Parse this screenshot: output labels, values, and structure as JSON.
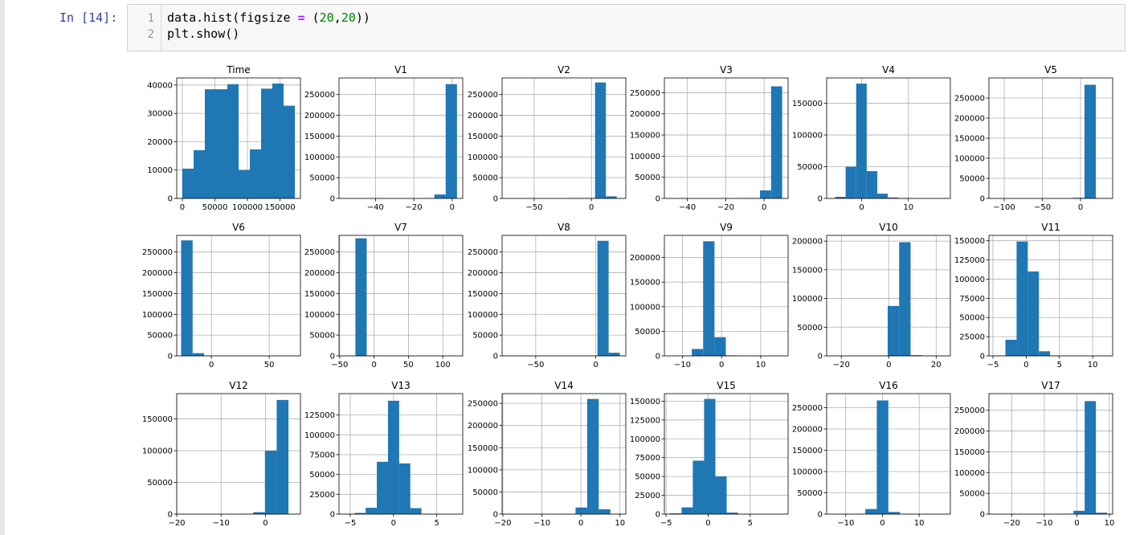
{
  "cell": {
    "prompt": "In [14]:",
    "line_numbers": [
      "1",
      "2"
    ],
    "line1": {
      "a": "data.hist(figsize ",
      "op": "=",
      "b": " (",
      "n1": "20",
      "c": ",",
      "n2": "20",
      "d": "))"
    },
    "line2": "plt.show()"
  },
  "colors": {
    "bar": "#1f77b4",
    "grid": "#b0b0b0",
    "prompt": "#303f9f",
    "cell_bg": "#f7f7f7",
    "cell_border": "#cfcfcf"
  },
  "chart_data": [
    {
      "type": "bar",
      "title": "Time",
      "xlim": [
        -8600,
        181400
      ],
      "ylim": [
        0,
        42500
      ],
      "xticks": [
        {
          "v": 0,
          "l": "0"
        },
        {
          "v": 50000,
          "l": "50000"
        },
        {
          "v": 100000,
          "l": "100000"
        },
        {
          "v": 150000,
          "l": "150000"
        }
      ],
      "yticks": [
        {
          "v": 0,
          "l": "0"
        },
        {
          "v": 10000,
          "l": "10000"
        },
        {
          "v": 20000,
          "l": "20000"
        },
        {
          "v": 30000,
          "l": "30000"
        },
        {
          "v": 40000,
          "l": "40000"
        }
      ],
      "bin_start": 0,
      "bin_end": 172800,
      "values": [
        10500,
        17000,
        38500,
        38500,
        40300,
        10000,
        17300,
        38700,
        40500,
        32700
      ]
    },
    {
      "type": "bar",
      "title": "V1",
      "xlim": [
        -59,
        5.5
      ],
      "ylim": [
        0,
        290000
      ],
      "xticks": [
        {
          "v": -40,
          "l": "−40"
        },
        {
          "v": -20,
          "l": "−20"
        },
        {
          "v": 0,
          "l": "0"
        }
      ],
      "yticks": [
        {
          "v": 0,
          "l": "0"
        },
        {
          "v": 50000,
          "l": "50000"
        },
        {
          "v": 100000,
          "l": "100000"
        },
        {
          "v": 150000,
          "l": "150000"
        },
        {
          "v": 200000,
          "l": "200000"
        },
        {
          "v": 250000,
          "l": "250000"
        }
      ],
      "bin_start": -56.4,
      "bin_end": 2.5,
      "values": [
        0,
        0,
        0,
        0,
        0,
        0,
        0,
        500,
        9500,
        275000
      ]
    },
    {
      "type": "bar",
      "title": "V2",
      "xlim": [
        -78,
        30
      ],
      "ylim": [
        0,
        290000
      ],
      "xticks": [
        {
          "v": -50,
          "l": "−50"
        },
        {
          "v": 0,
          "l": "0"
        }
      ],
      "yticks": [
        {
          "v": 0,
          "l": "0"
        },
        {
          "v": 50000,
          "l": "50000"
        },
        {
          "v": 100000,
          "l": "100000"
        },
        {
          "v": 150000,
          "l": "150000"
        },
        {
          "v": 200000,
          "l": "200000"
        },
        {
          "v": 250000,
          "l": "250000"
        }
      ],
      "bin_start": -72.7,
      "bin_end": 22.1,
      "values": [
        0,
        0,
        0,
        0,
        0,
        0,
        700,
        800,
        279000,
        5000
      ]
    },
    {
      "type": "bar",
      "title": "V3",
      "xlim": [
        -52,
        12.5
      ],
      "ylim": [
        0,
        285000
      ],
      "xticks": [
        {
          "v": -40,
          "l": "−40"
        },
        {
          "v": -20,
          "l": "−20"
        },
        {
          "v": 0,
          "l": "0"
        }
      ],
      "yticks": [
        {
          "v": 0,
          "l": "0"
        },
        {
          "v": 50000,
          "l": "50000"
        },
        {
          "v": 100000,
          "l": "100000"
        },
        {
          "v": 150000,
          "l": "150000"
        },
        {
          "v": 200000,
          "l": "200000"
        },
        {
          "v": 250000,
          "l": "250000"
        }
      ],
      "bin_start": -48.3,
      "bin_end": 9.4,
      "values": [
        0,
        0,
        0,
        0,
        0,
        0,
        500,
        1000,
        19000,
        265000
      ]
    },
    {
      "type": "bar",
      "title": "V4",
      "xlim": [
        -7.5,
        19
      ],
      "ylim": [
        0,
        190000
      ],
      "xticks": [
        {
          "v": 0,
          "l": "0"
        },
        {
          "v": 10,
          "l": "10"
        }
      ],
      "yticks": [
        {
          "v": 0,
          "l": "0"
        },
        {
          "v": 50000,
          "l": "50000"
        },
        {
          "v": 100000,
          "l": "100000"
        },
        {
          "v": 150000,
          "l": "150000"
        }
      ],
      "bin_start": -5.7,
      "bin_end": 16.9,
      "values": [
        2500,
        50000,
        181000,
        43000,
        7500,
        1500,
        500,
        0,
        0,
        0
      ]
    },
    {
      "type": "bar",
      "title": "V5",
      "xlim": [
        -120,
        42
      ],
      "ylim": [
        0,
        300000
      ],
      "xticks": [
        {
          "v": -100,
          "l": "−100"
        },
        {
          "v": -50,
          "l": "−50"
        },
        {
          "v": 0,
          "l": "0"
        }
      ],
      "yticks": [
        {
          "v": 0,
          "l": "0"
        },
        {
          "v": 50000,
          "l": "50000"
        },
        {
          "v": 100000,
          "l": "100000"
        },
        {
          "v": 150000,
          "l": "150000"
        },
        {
          "v": 200000,
          "l": "200000"
        },
        {
          "v": 250000,
          "l": "250000"
        }
      ],
      "bin_start": -113.7,
      "bin_end": 34.8,
      "values": [
        0,
        0,
        0,
        0,
        0,
        0,
        0,
        1500,
        283000,
        500
      ]
    },
    {
      "type": "bar",
      "title": "V6",
      "xlim": [
        -30,
        77
      ],
      "ylim": [
        0,
        290000
      ],
      "xticks": [
        {
          "v": 0,
          "l": "0"
        },
        {
          "v": 50,
          "l": "50"
        }
      ],
      "yticks": [
        {
          "v": 0,
          "l": "0"
        },
        {
          "v": 50000,
          "l": "50000"
        },
        {
          "v": 100000,
          "l": "100000"
        },
        {
          "v": 150000,
          "l": "150000"
        },
        {
          "v": 200000,
          "l": "200000"
        },
        {
          "v": 250000,
          "l": "250000"
        }
      ],
      "bin_start": -26.2,
      "bin_end": 73.3,
      "values": [
        278000,
        6500,
        300,
        100,
        0,
        0,
        0,
        0,
        0,
        0
      ]
    },
    {
      "type": "bar",
      "title": "V7",
      "xlim": [
        -51,
        129
      ],
      "ylim": [
        0,
        290000
      ],
      "xticks": [
        {
          "v": -50,
          "l": "−50"
        },
        {
          "v": 0,
          "l": "0"
        },
        {
          "v": 50,
          "l": "50"
        },
        {
          "v": 100,
          "l": "100"
        }
      ],
      "yticks": [
        {
          "v": 0,
          "l": "0"
        },
        {
          "v": 50000,
          "l": "50000"
        },
        {
          "v": 100000,
          "l": "100000"
        },
        {
          "v": 150000,
          "l": "150000"
        },
        {
          "v": 200000,
          "l": "200000"
        },
        {
          "v": 250000,
          "l": "250000"
        }
      ],
      "bin_start": -43.6,
      "bin_end": 120.6,
      "values": [
        0,
        283000,
        1000,
        0,
        0,
        0,
        0,
        0,
        0,
        0
      ]
    },
    {
      "type": "bar",
      "title": "V8",
      "xlim": [
        -78,
        25
      ],
      "ylim": [
        0,
        290000
      ],
      "xticks": [
        {
          "v": -50,
          "l": "−50"
        },
        {
          "v": 0,
          "l": "0"
        }
      ],
      "yticks": [
        {
          "v": 0,
          "l": "0"
        },
        {
          "v": 50000,
          "l": "50000"
        },
        {
          "v": 100000,
          "l": "100000"
        },
        {
          "v": 150000,
          "l": "150000"
        },
        {
          "v": 200000,
          "l": "200000"
        },
        {
          "v": 250000,
          "l": "250000"
        }
      ],
      "bin_start": -73.2,
      "bin_end": 20.0,
      "values": [
        0,
        0,
        0,
        0,
        0,
        0,
        0,
        300,
        277000,
        7500
      ]
    },
    {
      "type": "bar",
      "title": "V9",
      "xlim": [
        -14.6,
        17.0
      ],
      "ylim": [
        0,
        245000
      ],
      "xticks": [
        {
          "v": -10,
          "l": "−10"
        },
        {
          "v": 0,
          "l": "0"
        },
        {
          "v": 10,
          "l": "10"
        }
      ],
      "yticks": [
        {
          "v": 0,
          "l": "0"
        },
        {
          "v": 50000,
          "l": "50000"
        },
        {
          "v": 100000,
          "l": "100000"
        },
        {
          "v": 150000,
          "l": "150000"
        },
        {
          "v": 200000,
          "l": "200000"
        }
      ],
      "bin_start": -13.4,
      "bin_end": 15.6,
      "values": [
        100,
        500,
        14000,
        233000,
        38000,
        1000,
        100,
        0,
        0,
        0
      ]
    },
    {
      "type": "bar",
      "title": "V10",
      "xlim": [
        -26.2,
        26.0
      ],
      "ylim": [
        0,
        210000
      ],
      "xticks": [
        {
          "v": -20,
          "l": "−20"
        },
        {
          "v": 0,
          "l": "0"
        },
        {
          "v": 20,
          "l": "20"
        }
      ],
      "yticks": [
        {
          "v": 0,
          "l": "0"
        },
        {
          "v": 50000,
          "l": "50000"
        },
        {
          "v": 100000,
          "l": "100000"
        },
        {
          "v": 150000,
          "l": "150000"
        },
        {
          "v": 200000,
          "l": "200000"
        }
      ],
      "bin_start": -24.6,
      "bin_end": 23.7,
      "values": [
        0,
        0,
        0,
        0,
        200,
        87000,
        198000,
        1200,
        0,
        0
      ]
    },
    {
      "type": "bar",
      "title": "V11",
      "xlim": [
        -5.6,
        13.0
      ],
      "ylim": [
        0,
        157000
      ],
      "xticks": [
        {
          "v": -5,
          "l": "−5"
        },
        {
          "v": 0,
          "l": "0"
        },
        {
          "v": 5,
          "l": "5"
        },
        {
          "v": 10,
          "l": "10"
        }
      ],
      "yticks": [
        {
          "v": 0,
          "l": "0"
        },
        {
          "v": 25000,
          "l": "25000"
        },
        {
          "v": 50000,
          "l": "50000"
        },
        {
          "v": 75000,
          "l": "75000"
        },
        {
          "v": 100000,
          "l": "100000"
        },
        {
          "v": 125000,
          "l": "125000"
        },
        {
          "v": 150000,
          "l": "150000"
        }
      ],
      "bin_start": -4.8,
      "bin_end": 12.0,
      "values": [
        500,
        21000,
        149000,
        110000,
        6000,
        200,
        50,
        0,
        0,
        0
      ]
    },
    {
      "type": "bar",
      "title": "V12",
      "xlim": [
        -20,
        7.9
      ],
      "ylim": [
        0,
        190000
      ],
      "xticks": [
        {
          "v": -20,
          "l": "−20"
        },
        {
          "v": -10,
          "l": "−10"
        },
        {
          "v": 0,
          "l": "0"
        }
      ],
      "yticks": [
        {
          "v": 0,
          "l": "0"
        },
        {
          "v": 50000,
          "l": "50000"
        },
        {
          "v": 100000,
          "l": "100000"
        },
        {
          "v": 150000,
          "l": "150000"
        }
      ],
      "bin_start": -18.7,
      "bin_end": 7.85,
      "values": [
        0,
        0,
        0,
        0,
        0,
        500,
        3000,
        100000,
        180000,
        0
      ]
    },
    {
      "type": "bar",
      "title": "V13",
      "xlim": [
        -6.3,
        8.0
      ],
      "ylim": [
        0,
        152000
      ],
      "xticks": [
        {
          "v": -5,
          "l": "−5"
        },
        {
          "v": 0,
          "l": "0"
        },
        {
          "v": 5,
          "l": "5"
        }
      ],
      "yticks": [
        {
          "v": 0,
          "l": "0"
        },
        {
          "v": 25000,
          "l": "25000"
        },
        {
          "v": 50000,
          "l": "50000"
        },
        {
          "v": 75000,
          "l": "75000"
        },
        {
          "v": 100000,
          "l": "100000"
        },
        {
          "v": 125000,
          "l": "125000"
        }
      ],
      "bin_start": -5.8,
      "bin_end": 7.1,
      "values": [
        100,
        1500,
        8000,
        66000,
        143000,
        64000,
        7500,
        100,
        50,
        0
      ]
    },
    {
      "type": "bar",
      "title": "V14",
      "xlim": [
        -20.2,
        11.5
      ],
      "ylim": [
        0,
        272000
      ],
      "xticks": [
        {
          "v": -20,
          "l": "−20"
        },
        {
          "v": -10,
          "l": "−10"
        },
        {
          "v": 0,
          "l": "0"
        },
        {
          "v": 10,
          "l": "10"
        }
      ],
      "yticks": [
        {
          "v": 0,
          "l": "0"
        },
        {
          "v": 50000,
          "l": "50000"
        },
        {
          "v": 100000,
          "l": "100000"
        },
        {
          "v": 150000,
          "l": "150000"
        },
        {
          "v": 200000,
          "l": "200000"
        },
        {
          "v": 250000,
          "l": "250000"
        }
      ],
      "bin_start": -19.2,
      "bin_end": 10.5,
      "values": [
        0,
        0,
        0,
        0,
        0,
        200,
        15000,
        260000,
        11000,
        500
      ]
    },
    {
      "type": "bar",
      "title": "V15",
      "xlim": [
        -5.2,
        9.5
      ],
      "ylim": [
        0,
        160000
      ],
      "xticks": [
        {
          "v": -5,
          "l": "−5"
        },
        {
          "v": 0,
          "l": "0"
        },
        {
          "v": 5,
          "l": "5"
        }
      ],
      "yticks": [
        {
          "v": 0,
          "l": "0"
        },
        {
          "v": 25000,
          "l": "25000"
        },
        {
          "v": 50000,
          "l": "50000"
        },
        {
          "v": 75000,
          "l": "75000"
        },
        {
          "v": 100000,
          "l": "100000"
        },
        {
          "v": 125000,
          "l": "125000"
        },
        {
          "v": 150000,
          "l": "150000"
        }
      ],
      "bin_start": -4.5,
      "bin_end": 8.9,
      "values": [
        1000,
        9000,
        71000,
        153000,
        50000,
        2000,
        200,
        50,
        0,
        0
      ]
    },
    {
      "type": "bar",
      "title": "V16",
      "xlim": [
        -15.2,
        18.5
      ],
      "ylim": [
        0,
        283000
      ],
      "xticks": [
        {
          "v": -10,
          "l": "−10"
        },
        {
          "v": 0,
          "l": "0"
        },
        {
          "v": 10,
          "l": "10"
        }
      ],
      "yticks": [
        {
          "v": 0,
          "l": "0"
        },
        {
          "v": 50000,
          "l": "50000"
        },
        {
          "v": 100000,
          "l": "100000"
        },
        {
          "v": 150000,
          "l": "150000"
        },
        {
          "v": 200000,
          "l": "200000"
        },
        {
          "v": 250000,
          "l": "250000"
        }
      ],
      "bin_start": -14.1,
      "bin_end": 17.3,
      "values": [
        50,
        200,
        600,
        12000,
        267000,
        5000,
        300,
        100,
        0,
        0
      ]
    },
    {
      "type": "bar",
      "title": "V17",
      "xlim": [
        -27,
        11.0
      ],
      "ylim": [
        0,
        290000
      ],
      "xticks": [
        {
          "v": -20,
          "l": "−20"
        },
        {
          "v": -10,
          "l": "−10"
        },
        {
          "v": 0,
          "l": "0"
        },
        {
          "v": 10,
          "l": "10"
        }
      ],
      "yticks": [
        {
          "v": 0,
          "l": "0"
        },
        {
          "v": 50000,
          "l": "50000"
        },
        {
          "v": 100000,
          "l": "100000"
        },
        {
          "v": 150000,
          "l": "150000"
        },
        {
          "v": 200000,
          "l": "200000"
        },
        {
          "v": 250000,
          "l": "250000"
        }
      ],
      "bin_start": -25.2,
      "bin_end": 9.3,
      "values": [
        0,
        0,
        0,
        0,
        100,
        200,
        900,
        8000,
        272000,
        3500
      ]
    }
  ]
}
